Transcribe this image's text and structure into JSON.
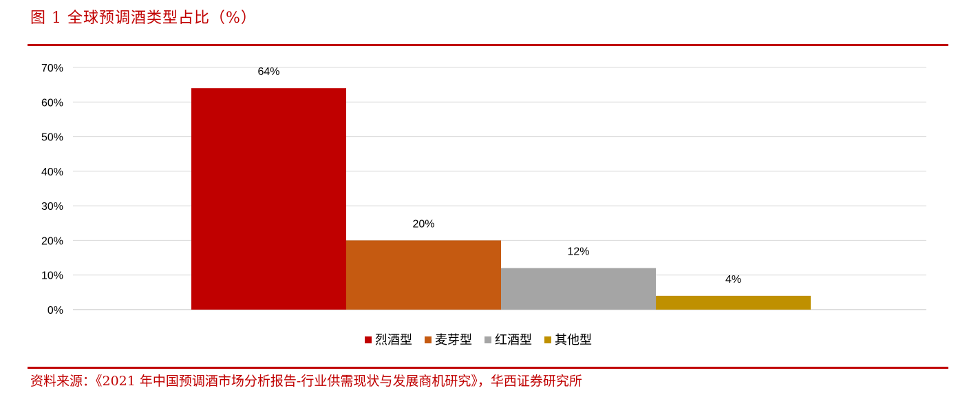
{
  "header": {
    "title": "图 1 全球预调酒类型占比（%）"
  },
  "footer": {
    "source": "资料来源：《2021 年中国预调酒市场分析报告-行业供需现状与发展商机研究》，华西证券研究所"
  },
  "chart_data": {
    "type": "bar",
    "title": "",
    "xlabel": "",
    "ylabel": "",
    "ylim": [
      0,
      70
    ],
    "yticks": [
      0,
      10,
      20,
      30,
      40,
      50,
      60,
      70
    ],
    "ytick_labels": [
      "0%",
      "10%",
      "20%",
      "30%",
      "40%",
      "50%",
      "60%",
      "70%"
    ],
    "grid": true,
    "legend_position": "bottom",
    "series": [
      {
        "name": "烈酒型",
        "value": 64,
        "label": "64%",
        "color": "#c00000"
      },
      {
        "name": "麦芽型",
        "value": 20,
        "label": "20%",
        "color": "#c55a11"
      },
      {
        "name": "红酒型",
        "value": 12,
        "label": "12%",
        "color": "#a5a5a5"
      },
      {
        "name": "其他型",
        "value": 4,
        "label": "4%",
        "color": "#bf9000"
      }
    ]
  }
}
